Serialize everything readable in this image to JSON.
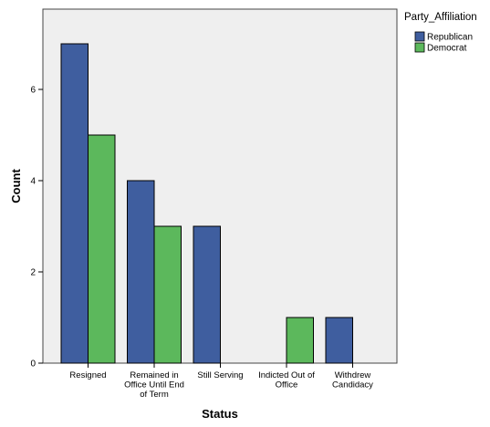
{
  "chart_data": {
    "type": "bar",
    "xlabel": "Status",
    "ylabel": "Count",
    "ylim": [
      0,
      7
    ],
    "yticks": [
      0,
      2,
      4,
      6
    ],
    "grid": false,
    "legend_position": "top-right",
    "legend_title": "Party_Affiliation",
    "categories": [
      [
        "Resigned"
      ],
      [
        "Remained in",
        "Office Until End",
        "of Term"
      ],
      [
        "Still Serving"
      ],
      [
        "Indicted Out of",
        "Office"
      ],
      [
        "Withdrew",
        "Candidacy"
      ]
    ],
    "series": [
      {
        "name": "Republican",
        "values": [
          7,
          4,
          3,
          0,
          1
        ]
      },
      {
        "name": "Democrat",
        "values": [
          5,
          3,
          0,
          1,
          0
        ]
      }
    ]
  },
  "colors": {
    "Republican": "#3f5e9f",
    "Democrat": "#5cb85c",
    "plot_bg": "#efefef",
    "bar_stroke": "#000000"
  }
}
